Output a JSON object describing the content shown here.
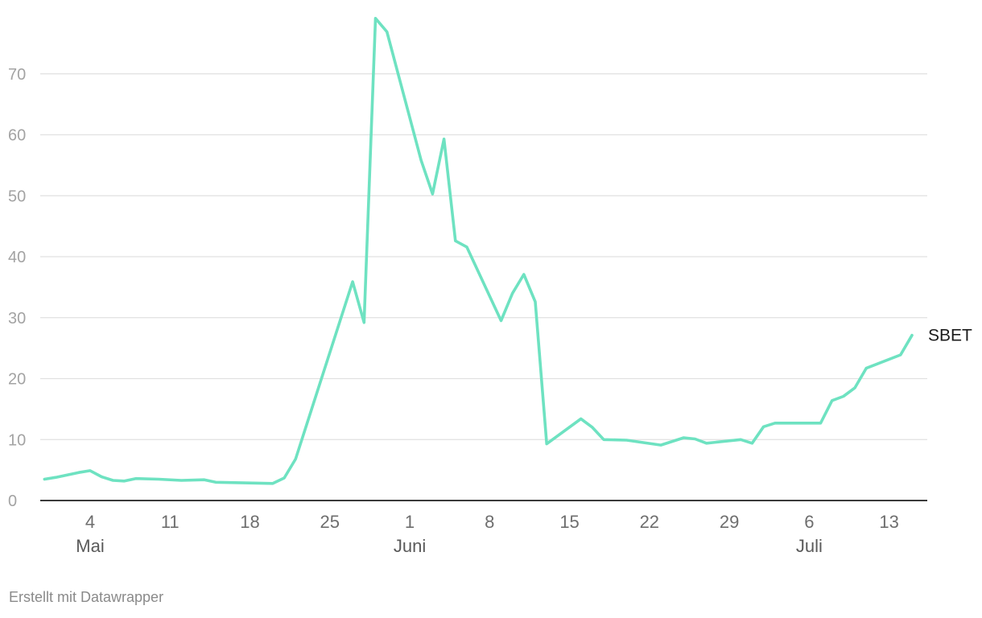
{
  "credit": "Erstellt mit Datawrapper",
  "chart_data": {
    "type": "line",
    "title": "",
    "xlabel": "",
    "ylabel": "",
    "x_axis_type": "date",
    "ylim": [
      0,
      80
    ],
    "yticks": [
      0,
      10,
      20,
      30,
      40,
      50,
      60,
      70
    ],
    "xticks": [
      {
        "date": "2021-05-04",
        "label": "4",
        "month": "Mai"
      },
      {
        "date": "2021-05-11",
        "label": "11",
        "month": ""
      },
      {
        "date": "2021-05-18",
        "label": "18",
        "month": ""
      },
      {
        "date": "2021-05-25",
        "label": "25",
        "month": ""
      },
      {
        "date": "2021-06-01",
        "label": "1",
        "month": "Juni"
      },
      {
        "date": "2021-06-08",
        "label": "8",
        "month": ""
      },
      {
        "date": "2021-06-15",
        "label": "15",
        "month": ""
      },
      {
        "date": "2021-06-22",
        "label": "22",
        "month": ""
      },
      {
        "date": "2021-06-29",
        "label": "29",
        "month": ""
      },
      {
        "date": "2021-07-06",
        "label": "6",
        "month": "Juli"
      },
      {
        "date": "2021-07-13",
        "label": "13",
        "month": ""
      }
    ],
    "grid": true,
    "color": "#6ee2c1",
    "series": [
      {
        "name": "SBET",
        "points": [
          [
            "2021-04-30",
            3.5
          ],
          [
            "2021-05-01",
            3.8
          ],
          [
            "2021-05-02",
            4.2
          ],
          [
            "2021-05-03",
            4.6
          ],
          [
            "2021-05-04",
            4.9
          ],
          [
            "2021-05-05",
            3.9
          ],
          [
            "2021-05-06",
            3.3
          ],
          [
            "2021-05-07",
            3.2
          ],
          [
            "2021-05-08",
            3.6
          ],
          [
            "2021-05-10",
            3.5
          ],
          [
            "2021-05-12",
            3.3
          ],
          [
            "2021-05-14",
            3.4
          ],
          [
            "2021-05-15",
            3.0
          ],
          [
            "2021-05-20",
            2.8
          ],
          [
            "2021-05-21",
            3.7
          ],
          [
            "2021-05-22",
            6.8
          ],
          [
            "2021-05-27",
            35.9
          ],
          [
            "2021-05-28",
            29.2
          ],
          [
            "2021-05-29",
            79.1
          ],
          [
            "2021-05-30",
            76.9
          ],
          [
            "2021-06-02",
            55.8
          ],
          [
            "2021-06-03",
            50.3
          ],
          [
            "2021-06-04",
            59.3
          ],
          [
            "2021-06-05",
            42.6
          ],
          [
            "2021-06-06",
            41.6
          ],
          [
            "2021-06-09",
            29.5
          ],
          [
            "2021-06-10",
            34.0
          ],
          [
            "2021-06-11",
            37.1
          ],
          [
            "2021-06-12",
            32.6
          ],
          [
            "2021-06-13",
            9.3
          ],
          [
            "2021-06-16",
            13.4
          ],
          [
            "2021-06-17",
            12.0
          ],
          [
            "2021-06-18",
            10.0
          ],
          [
            "2021-06-20",
            9.9
          ],
          [
            "2021-06-23",
            9.1
          ],
          [
            "2021-06-25",
            10.3
          ],
          [
            "2021-06-26",
            10.1
          ],
          [
            "2021-06-27",
            9.4
          ],
          [
            "2021-06-30",
            10.0
          ],
          [
            "2021-07-01",
            9.4
          ],
          [
            "2021-07-02",
            12.1
          ],
          [
            "2021-07-03",
            12.7
          ],
          [
            "2021-07-07",
            12.7
          ],
          [
            "2021-07-08",
            16.4
          ],
          [
            "2021-07-09",
            17.1
          ],
          [
            "2021-07-10",
            18.5
          ],
          [
            "2021-07-11",
            21.7
          ],
          [
            "2021-07-14",
            23.9
          ],
          [
            "2021-07-15",
            27.1
          ]
        ]
      }
    ]
  }
}
